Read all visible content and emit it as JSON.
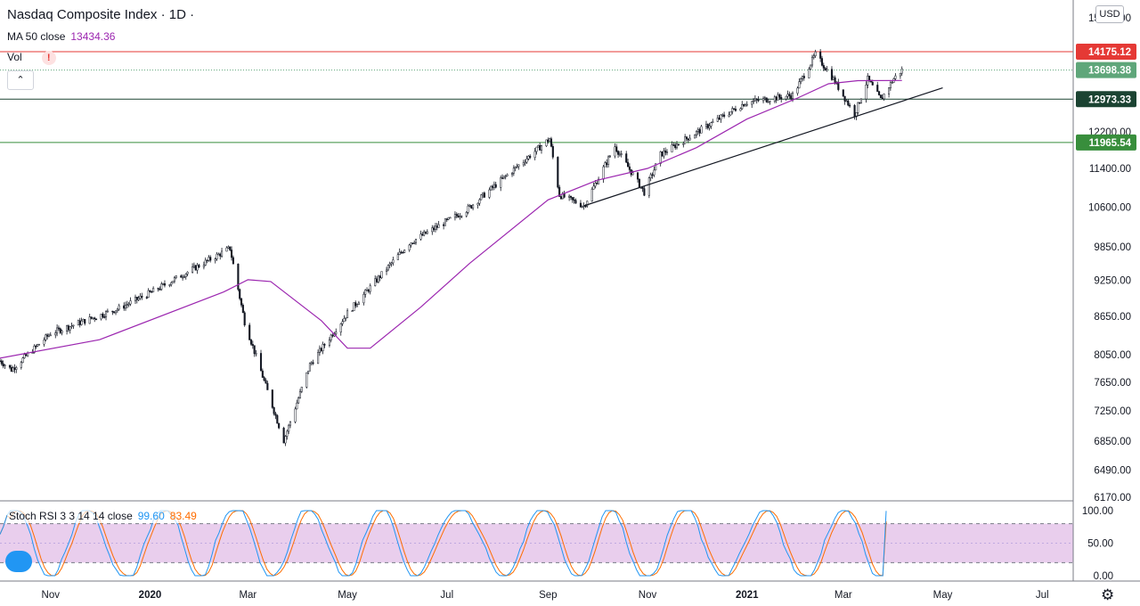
{
  "header": {
    "title": "Nasdaq Composite Index · 1D ·",
    "ma_label": "MA 50 close",
    "ma_value": "13434.36",
    "vol_label": "Vol",
    "vol_warning": "!",
    "collapse_symbol": "⌃",
    "currency": "USD"
  },
  "stoch": {
    "label": "Stoch RSI 3 3 14 14 close",
    "k_value": "99.60",
    "d_value": "83.49"
  },
  "colors": {
    "ma": "#9c27b0",
    "k": "#2196f3",
    "d": "#ff6d00",
    "up": "#26a69a",
    "down": "#ef5350",
    "resistance": "#e53935",
    "support_dark": "#1b4332",
    "support_green": "#388e3c",
    "band_fill": "#e1bee7"
  },
  "chart_data": [
    {
      "type": "candlestick",
      "title": "Nasdaq Composite Index · 1D",
      "y_ticks": [
        "15100.00",
        "14175.12",
        "12200.00",
        "11400.00",
        "10600.00",
        "9850.00",
        "9250.00",
        "8650.00",
        "8050.00",
        "7650.00",
        "7250.00",
        "6850.00",
        "6490.00",
        "6170.00"
      ],
      "x_ticks": [
        "Nov",
        "2020",
        "Mar",
        "May",
        "Jul",
        "Sep",
        "Nov",
        "2021",
        "Mar",
        "May",
        "Jul"
      ],
      "key_points": [
        {
          "date": "2019-10-01",
          "close": 7960
        },
        {
          "date": "2019-10-08",
          "close": 7830
        },
        {
          "date": "2019-11-01",
          "close": 8380
        },
        {
          "date": "2019-12-13",
          "close": 8780
        },
        {
          "date": "2020-01-02",
          "close": 9050
        },
        {
          "date": "2020-02-19",
          "close": 9820
        },
        {
          "date": "2020-02-28",
          "close": 8560
        },
        {
          "date": "2020-03-23",
          "close": 6860
        },
        {
          "date": "2020-04-08",
          "close": 7900
        },
        {
          "date": "2020-05-01",
          "close": 8700
        },
        {
          "date": "2020-06-08",
          "close": 9920
        },
        {
          "date": "2020-07-13",
          "close": 10550
        },
        {
          "date": "2020-09-02",
          "close": 12050
        },
        {
          "date": "2020-09-08",
          "close": 10850
        },
        {
          "date": "2020-09-23",
          "close": 10630
        },
        {
          "date": "2020-10-12",
          "close": 11880
        },
        {
          "date": "2020-10-30",
          "close": 10900
        },
        {
          "date": "2020-11-09",
          "close": 11700
        },
        {
          "date": "2020-12-31",
          "close": 12890
        },
        {
          "date": "2021-01-29",
          "close": 13070
        },
        {
          "date": "2021-02-12",
          "close": 14100
        },
        {
          "date": "2021-02-22",
          "close": 13530
        },
        {
          "date": "2021-03-08",
          "close": 12610
        },
        {
          "date": "2021-03-16",
          "close": 13470
        },
        {
          "date": "2021-03-24",
          "close": 12960
        },
        {
          "date": "2021-04-01",
          "close": 13480
        },
        {
          "date": "2021-04-06",
          "close": 13700
        }
      ],
      "ma50_points": [
        {
          "date": "2019-10-01",
          "value": 8000
        },
        {
          "date": "2019-12-01",
          "value": 8280
        },
        {
          "date": "2020-02-15",
          "value": 9050
        },
        {
          "date": "2020-03-01",
          "value": 9260
        },
        {
          "date": "2020-03-15",
          "value": 9230
        },
        {
          "date": "2020-04-15",
          "value": 8580
        },
        {
          "date": "2020-05-01",
          "value": 8150
        },
        {
          "date": "2020-05-15",
          "value": 8150
        },
        {
          "date": "2020-06-15",
          "value": 8800
        },
        {
          "date": "2020-07-15",
          "value": 9550
        },
        {
          "date": "2020-09-01",
          "value": 10750
        },
        {
          "date": "2020-10-01",
          "value": 11150
        },
        {
          "date": "2020-11-01",
          "value": 11400
        },
        {
          "date": "2020-12-01",
          "value": 11850
        },
        {
          "date": "2021-01-01",
          "value": 12500
        },
        {
          "date": "2021-02-01",
          "value": 13000
        },
        {
          "date": "2021-02-20",
          "value": 13350
        },
        {
          "date": "2021-03-10",
          "value": 13430
        },
        {
          "date": "2021-04-06",
          "value": 13434.36
        }
      ],
      "price_lines": [
        {
          "label": "14175.12",
          "value": 14175.12,
          "style": "solid",
          "color": "#e53935"
        },
        {
          "label": "13698.38",
          "value": 13698.38,
          "style": "dotted",
          "color": "#5fa67a"
        },
        {
          "label": "12973.33",
          "value": 12973.33,
          "style": "solid",
          "color": "#1b4332"
        },
        {
          "label": "11965.54",
          "value": 11965.54,
          "style": "solid",
          "color": "#388e3c"
        }
      ],
      "trendline": [
        {
          "date": "2020-09-23",
          "value": 10630
        },
        {
          "date": "2021-05-01",
          "value": 13250
        }
      ],
      "grid": false,
      "scale": "log"
    },
    {
      "type": "line",
      "title": "Stoch RSI 3 3 14 14 close",
      "y_ticks": [
        "100.00",
        "50.00",
        "0.00"
      ],
      "ylim": [
        0,
        100
      ],
      "band": [
        20,
        80
      ],
      "series": [
        {
          "name": "K",
          "last": 99.6
        },
        {
          "name": "D",
          "last": 83.49
        }
      ]
    }
  ]
}
